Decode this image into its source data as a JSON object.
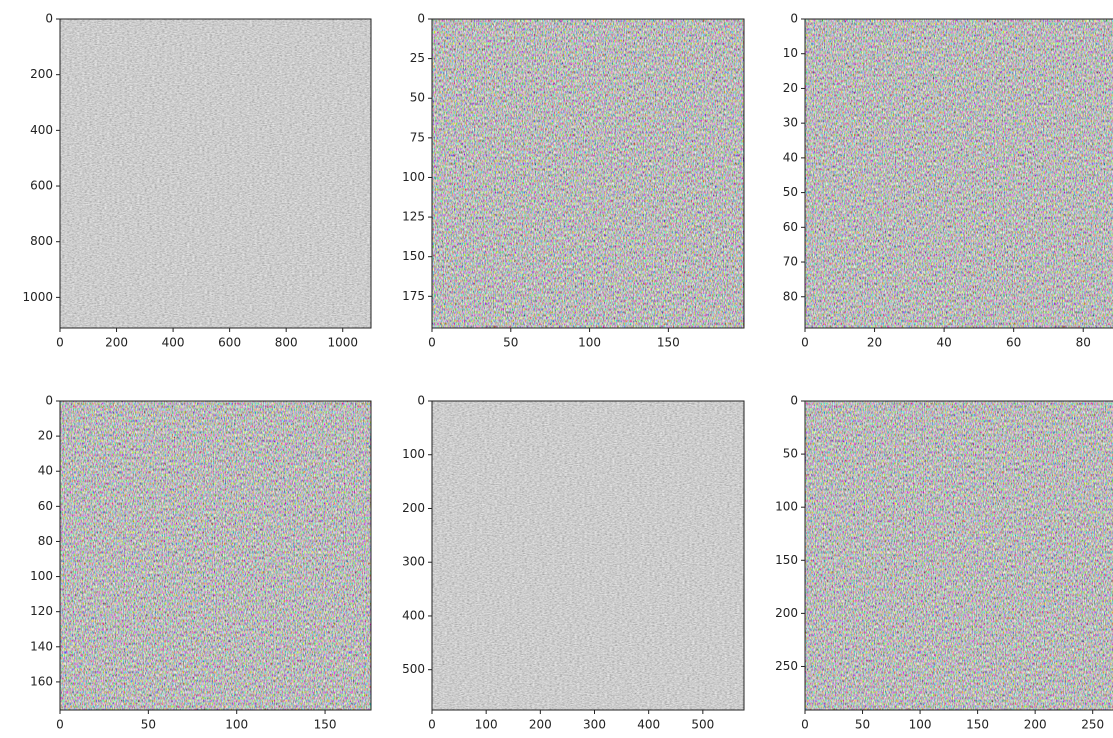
{
  "chart_data": [
    {
      "type": "image",
      "grayscale": true,
      "xlim": [
        0,
        1100
      ],
      "ylim": [
        1110,
        0
      ],
      "xticks": [
        0,
        200,
        400,
        600,
        800,
        1000
      ],
      "yticks": [
        0,
        200,
        400,
        600,
        800,
        1000
      ]
    },
    {
      "type": "image",
      "grayscale": false,
      "xlim": [
        0,
        198
      ],
      "ylim": [
        195,
        0
      ],
      "xticks": [
        0,
        50,
        100,
        150
      ],
      "yticks": [
        0,
        25,
        50,
        75,
        100,
        125,
        150,
        175
      ]
    },
    {
      "type": "image",
      "grayscale": false,
      "xlim": [
        0,
        90
      ],
      "ylim": [
        89,
        0
      ],
      "xticks": [
        0,
        20,
        40,
        60,
        80
      ],
      "yticks": [
        0,
        10,
        20,
        30,
        40,
        50,
        60,
        70,
        80
      ]
    },
    {
      "type": "image",
      "grayscale": false,
      "xlim": [
        0,
        176
      ],
      "ylim": [
        176,
        0
      ],
      "xticks": [
        0,
        50,
        100,
        150
      ],
      "yticks": [
        0,
        20,
        40,
        60,
        80,
        100,
        120,
        140,
        160
      ]
    },
    {
      "type": "image",
      "grayscale": true,
      "xlim": [
        0,
        576
      ],
      "ylim": [
        575,
        0
      ],
      "xticks": [
        0,
        100,
        200,
        300,
        400,
        500
      ],
      "yticks": [
        0,
        100,
        200,
        300,
        400,
        500
      ]
    },
    {
      "type": "image",
      "grayscale": false,
      "xlim": [
        0,
        272
      ],
      "ylim": [
        291,
        0
      ],
      "xticks": [
        0,
        50,
        100,
        150,
        200,
        250
      ],
      "yticks": [
        0,
        50,
        100,
        150,
        200,
        250
      ]
    }
  ]
}
